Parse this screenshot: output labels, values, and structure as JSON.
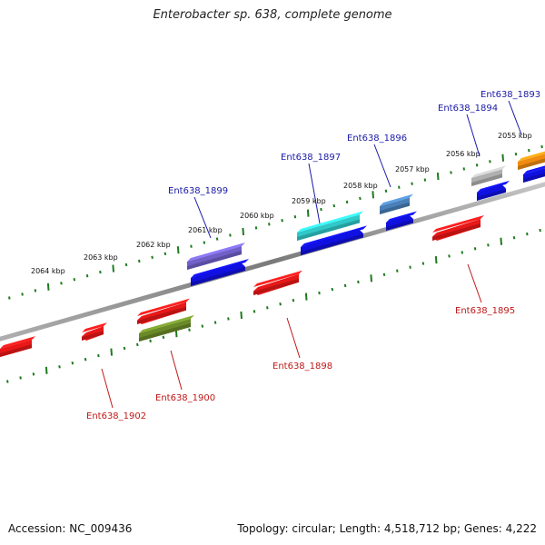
{
  "title": "Enterobacter sp. 638, complete genome",
  "footer": {
    "accession": "Accession: NC_009436",
    "summary": "Topology: circular; Length: 4,518,712 bp; Genes: 4,222"
  },
  "colors": {
    "backbone": "#8a8a8a",
    "ticks": "#1e7a1e",
    "forward_label": "#1a1aa8",
    "reverse_label": "#c01818"
  },
  "scale_labels": [
    "2064 kbp",
    "2063 kbp",
    "2062 kbp",
    "2061 kbp",
    "2060 kbp",
    "2059 kbp",
    "2058 kbp",
    "2057 kbp",
    "2056 kbp",
    "2055 kbp"
  ],
  "features": {
    "forward": [
      {
        "label": "Ent638_1899",
        "color": "#7060c8"
      },
      {
        "label": "Ent638_1897",
        "color": "#30c8c8"
      },
      {
        "label": "Ent638_1896",
        "color": "#4a80b8"
      },
      {
        "label": "Ent638_1894",
        "color": "#b0b0b0"
      },
      {
        "label": "Ent638_1893",
        "color": "#f08c10"
      }
    ],
    "reverse": [
      {
        "label": "Ent638_1902",
        "color": "#e81818"
      },
      {
        "label": "Ent638_1900",
        "color": "#6a8a28"
      },
      {
        "label": "Ent638_1898",
        "color": "#e81818"
      },
      {
        "label": "Ent638_1895",
        "color": "#e81818"
      }
    ]
  }
}
